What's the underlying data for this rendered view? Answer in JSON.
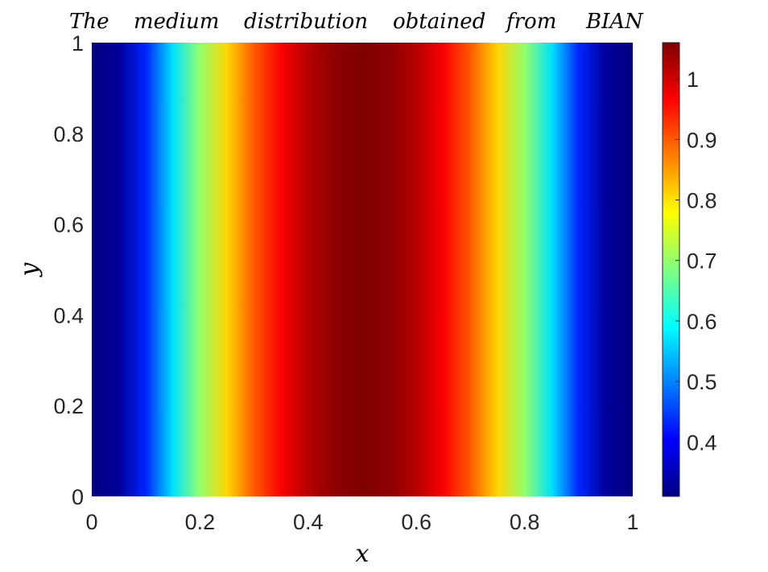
{
  "chart_data": {
    "type": "heatmap",
    "title_words": [
      "The",
      "medium",
      "distribution",
      "obtained",
      "from",
      "BIAN"
    ],
    "xlabel": "x",
    "ylabel": "y",
    "xlim": [
      0,
      1
    ],
    "ylim": [
      0,
      1
    ],
    "x_ticks": [
      "0",
      "0.2",
      "0.4",
      "0.6",
      "0.8",
      "1"
    ],
    "y_ticks": [
      "0",
      "0.2",
      "0.4",
      "0.6",
      "0.8",
      "1"
    ],
    "colormap": "jet",
    "colorbar": {
      "range": [
        0.31,
        1.06
      ],
      "ticks": [
        "0.4",
        "0.5",
        "0.6",
        "0.7",
        "0.8",
        "0.9",
        "1"
      ]
    },
    "field": {
      "description_varies_along": "x",
      "x": [
        0,
        0.05,
        0.1,
        0.15,
        0.2,
        0.25,
        0.3,
        0.35,
        0.4,
        0.45,
        0.5,
        0.55,
        0.6,
        0.65,
        0.7,
        0.75,
        0.8,
        0.85,
        0.9,
        0.95,
        1
      ],
      "values": [
        0.31,
        0.33,
        0.43,
        0.57,
        0.7,
        0.81,
        0.9,
        0.97,
        1.02,
        1.05,
        1.06,
        1.05,
        1.02,
        0.97,
        0.9,
        0.81,
        0.7,
        0.57,
        0.43,
        0.33,
        0.31
      ]
    }
  }
}
